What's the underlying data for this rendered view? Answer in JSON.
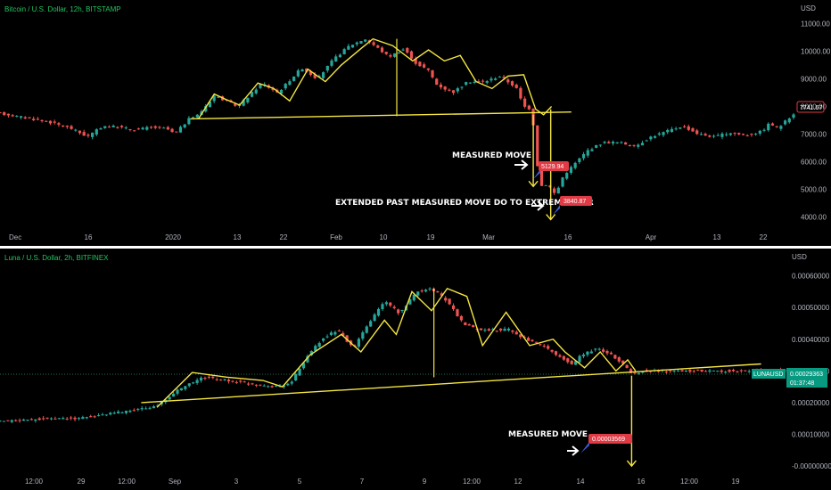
{
  "colors": {
    "background": "#000000",
    "up": "#26a69a",
    "up_bright": "#22c55e",
    "down": "#ef5350",
    "pattern": "#f5e642",
    "divider": "#ffffff",
    "axis_text": "#b2b5be",
    "price_tag_red": "#e03a45",
    "price_tag_teal": "#089981"
  },
  "chart_data": [
    {
      "type": "candlestick",
      "title": "Bitcoin / U.S. Dollar, 12h, BITSTAMP",
      "currency": "USD",
      "y_ticks": [
        11000,
        10000,
        9000,
        8000,
        7000,
        6000,
        5000,
        4000
      ],
      "y_tick_labels": [
        "11000.00",
        "10000.00",
        "9000.00",
        "8000.00",
        "7000.00",
        "6000.00",
        "5000.00",
        "4000.00"
      ],
      "ylim": [
        3400,
        11600
      ],
      "x_tick_labels": [
        "Dec",
        "16",
        "2020",
        "13",
        "22",
        "Feb",
        "10",
        "19",
        "Mar",
        "16",
        "Apr",
        "13",
        "22"
      ],
      "last_price": "7741.67",
      "close_path": [
        [
          0,
          7750
        ],
        [
          3,
          7600
        ],
        [
          6,
          7450
        ],
        [
          9,
          7200
        ],
        [
          11,
          6900
        ],
        [
          13,
          7300
        ],
        [
          15,
          7250
        ],
        [
          17,
          7150
        ],
        [
          19,
          7250
        ],
        [
          21,
          7200
        ],
        [
          22,
          7000
        ],
        [
          24,
          7600
        ],
        [
          25,
          7700
        ],
        [
          27,
          8400
        ],
        [
          30,
          8000
        ],
        [
          33,
          8850
        ],
        [
          35,
          8500
        ],
        [
          38,
          9400
        ],
        [
          40,
          9000
        ],
        [
          42,
          9700
        ],
        [
          44,
          10200
        ],
        [
          46,
          10450
        ],
        [
          47,
          10250
        ],
        [
          49,
          9800
        ],
        [
          51,
          10100
        ],
        [
          52,
          9650
        ],
        [
          54,
          9300
        ],
        [
          55,
          8800
        ],
        [
          57,
          8500
        ],
        [
          59,
          8900
        ],
        [
          61,
          8900
        ],
        [
          63,
          9100
        ],
        [
          65,
          8700
        ],
        [
          66,
          8000
        ],
        [
          67,
          7900
        ],
        [
          68,
          5100
        ],
        [
          69,
          5200
        ],
        [
          70,
          4800
        ],
        [
          71,
          5500
        ],
        [
          73,
          6100
        ],
        [
          74,
          6400
        ],
        [
          76,
          6700
        ],
        [
          78,
          6700
        ],
        [
          80,
          6550
        ],
        [
          82,
          6900
        ],
        [
          84,
          7100
        ],
        [
          86,
          7300
        ],
        [
          88,
          7000
        ],
        [
          90,
          6900
        ],
        [
          92,
          7050
        ],
        [
          94,
          6950
        ],
        [
          96,
          7100
        ],
        [
          97,
          7400
        ],
        [
          98,
          7200
        ],
        [
          100,
          7741.67
        ]
      ],
      "pattern_points": [
        [
          25,
          7550
        ],
        [
          27,
          8450
        ],
        [
          28.5,
          8250
        ],
        [
          30.2,
          8050
        ],
        [
          32.5,
          8850
        ],
        [
          34.5,
          8650
        ],
        [
          36.5,
          8200
        ],
        [
          38.8,
          9350
        ],
        [
          41,
          8900
        ],
        [
          43,
          9500
        ],
        [
          45.5,
          10100
        ],
        [
          47,
          10450
        ],
        [
          49.5,
          10200
        ],
        [
          52,
          9650
        ],
        [
          54,
          10050
        ],
        [
          56,
          9650
        ],
        [
          58,
          9850
        ],
        [
          60,
          8900
        ],
        [
          62,
          8650
        ],
        [
          64,
          9100
        ],
        [
          66,
          9150
        ],
        [
          67.5,
          7900
        ],
        [
          68.5,
          7700
        ],
        [
          69.5,
          8000
        ]
      ],
      "neckline": [
        [
          24,
          7550
        ],
        [
          72,
          7800
        ]
      ],
      "head_vertical": {
        "x": 50,
        "from": 10450,
        "to": 7650
      },
      "measured_move_lines": [
        {
          "x": 67.2,
          "from": 7700,
          "to": 5100
        },
        {
          "x": 69.4,
          "from": 7900,
          "to": 3900
        }
      ],
      "annotations": {
        "measured_move": "MEASURED MOVE",
        "extended": "EXTENDED PAST MEASURED MOVE DO TO EXTREME FEAR",
        "tag_1": "5129.94",
        "tag_2": "3840.87"
      }
    },
    {
      "type": "candlestick",
      "title": "Luna / U.S. Dollar, 2h, BITFINEX",
      "currency": "USD",
      "y_ticks": [
        0.0006,
        0.0005,
        0.0004,
        0.0003,
        0.0002,
        0.0001,
        0
      ],
      "y_tick_labels": [
        "0.00060000",
        "0.00050000",
        "0.00040000",
        "0.00030000",
        "0.00020000",
        "0.00010000",
        "-0.00000000"
      ],
      "ylim": [
        -2.5e-05,
        0.000655
      ],
      "x_tick_labels": [
        "12:00",
        "29",
        "12:00",
        "Sep",
        "3",
        "5",
        "7",
        "9",
        "12:00",
        "12",
        "14",
        "16",
        "12:00",
        "19"
      ],
      "symbol": "LUNAUSD",
      "last_price": "0.00029363",
      "countdown": "01:37:48",
      "close_path": [
        [
          0,
          0.00014
        ],
        [
          6,
          0.00015
        ],
        [
          10,
          0.00015
        ],
        [
          14,
          0.000165
        ],
        [
          18,
          0.00018
        ],
        [
          20,
          0.00019
        ],
        [
          23,
          0.000245
        ],
        [
          26,
          0.00028
        ],
        [
          29,
          0.00027
        ],
        [
          32,
          0.00026
        ],
        [
          35,
          0.00025
        ],
        [
          37,
          0.00026
        ],
        [
          39,
          0.00034
        ],
        [
          41,
          0.0004
        ],
        [
          43,
          0.00043
        ],
        [
          45,
          0.00037
        ],
        [
          47,
          0.00045
        ],
        [
          49,
          0.00052
        ],
        [
          51,
          0.00048
        ],
        [
          53,
          0.00055
        ],
        [
          55,
          0.00056
        ],
        [
          57,
          0.00052
        ],
        [
          59,
          0.00045
        ],
        [
          61,
          0.00043
        ],
        [
          63,
          0.00043
        ],
        [
          65,
          0.00043
        ],
        [
          67,
          0.0004
        ],
        [
          69,
          0.00038
        ],
        [
          71,
          0.00035
        ],
        [
          73,
          0.00032
        ],
        [
          74,
          0.00035
        ],
        [
          76,
          0.00037
        ],
        [
          78,
          0.00035
        ],
        [
          79.5,
          0.00032
        ],
        [
          80.5,
          0.00029
        ],
        [
          82,
          0.0003
        ]
      ],
      "pattern_points": [
        [
          20,
          0.000185
        ],
        [
          24.5,
          0.000295
        ],
        [
          29,
          0.00028
        ],
        [
          33.5,
          0.00027
        ],
        [
          36,
          0.00025
        ],
        [
          39.5,
          0.00035
        ],
        [
          43.5,
          0.000415
        ],
        [
          46,
          0.00036
        ],
        [
          49,
          0.00046
        ],
        [
          50.5,
          0.000415
        ],
        [
          52.5,
          0.00055
        ],
        [
          55,
          0.00049
        ],
        [
          57,
          0.00056
        ],
        [
          59.5,
          0.000535
        ],
        [
          61.5,
          0.00038
        ],
        [
          64.5,
          0.000485
        ],
        [
          67.5,
          0.00038
        ],
        [
          70.5,
          0.0004
        ],
        [
          72,
          0.00036
        ],
        [
          74.5,
          0.00031
        ],
        [
          76.5,
          0.00036
        ],
        [
          78.5,
          0.0003
        ],
        [
          80,
          0.000335
        ],
        [
          81,
          0.0003
        ]
      ],
      "neckline": [
        [
          18,
          0.0002
        ],
        [
          97,
          0.000322
        ]
      ],
      "head_vertical": {
        "x": 55.3,
        "from": 0.00056,
        "to": 0.00028
      },
      "measured_move_lines": [
        {
          "x": 80.5,
          "from": 0.000285,
          "to": 0.0
        }
      ],
      "annotations": {
        "measured_move": "MEASURED MOVE",
        "tag_1": "0.00003569"
      }
    }
  ]
}
